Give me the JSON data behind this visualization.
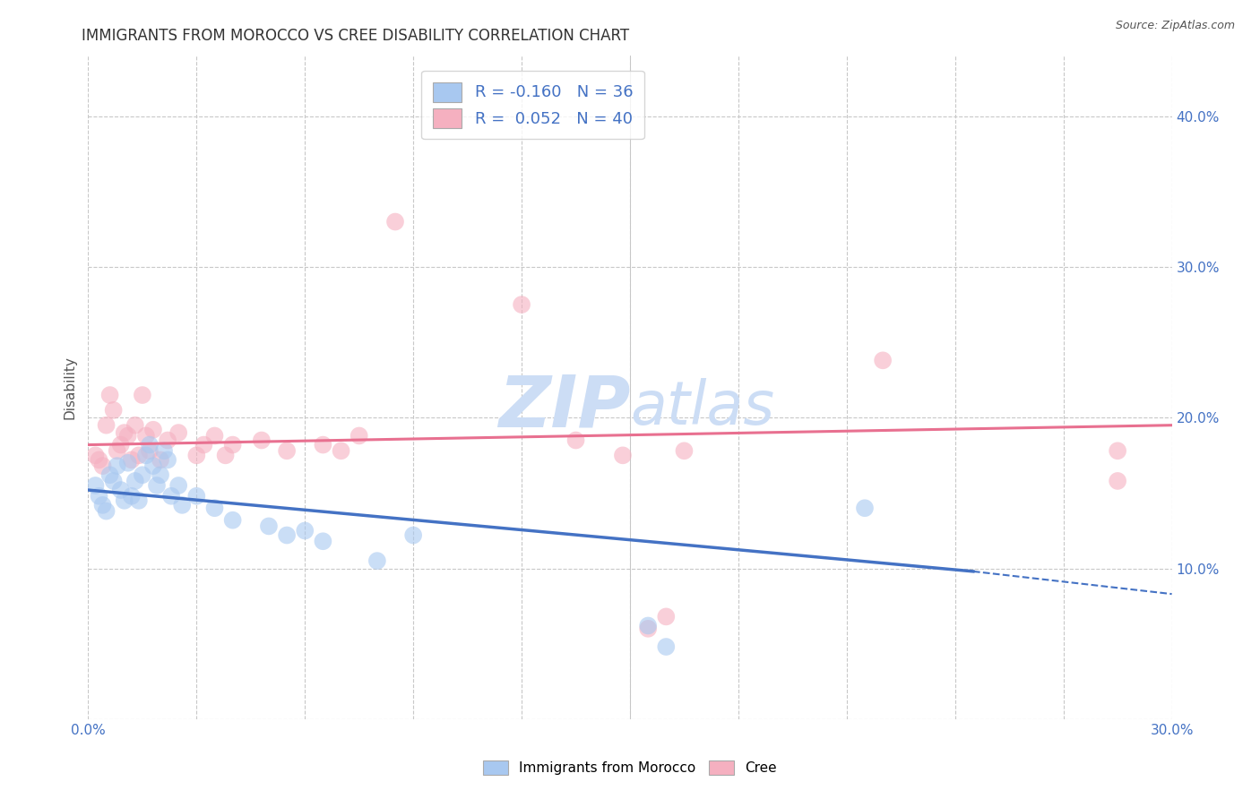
{
  "title": "IMMIGRANTS FROM MOROCCO VS CREE DISABILITY CORRELATION CHART",
  "source": "Source: ZipAtlas.com",
  "ylabel": "Disability",
  "xlim": [
    0.0,
    0.3
  ],
  "ylim": [
    0.0,
    0.44
  ],
  "yticks": [
    0.0,
    0.1,
    0.2,
    0.3,
    0.4
  ],
  "xticks": [
    0.0,
    0.03,
    0.06,
    0.09,
    0.12,
    0.15,
    0.18,
    0.21,
    0.24,
    0.27,
    0.3
  ],
  "legend_blue_label": "R = -0.160   N = 36",
  "legend_pink_label": "R =  0.052   N = 40",
  "blue_color": "#A8C8F0",
  "pink_color": "#F5B0C0",
  "blue_line_color": "#4472C4",
  "pink_line_color": "#E87090",
  "axis_color": "#4472C4",
  "title_color": "#333333",
  "scatter_blue": [
    [
      0.002,
      0.155
    ],
    [
      0.003,
      0.148
    ],
    [
      0.004,
      0.142
    ],
    [
      0.005,
      0.138
    ],
    [
      0.006,
      0.162
    ],
    [
      0.007,
      0.158
    ],
    [
      0.008,
      0.168
    ],
    [
      0.009,
      0.152
    ],
    [
      0.01,
      0.145
    ],
    [
      0.011,
      0.17
    ],
    [
      0.012,
      0.148
    ],
    [
      0.013,
      0.158
    ],
    [
      0.014,
      0.145
    ],
    [
      0.015,
      0.162
    ],
    [
      0.016,
      0.175
    ],
    [
      0.017,
      0.182
    ],
    [
      0.018,
      0.168
    ],
    [
      0.019,
      0.155
    ],
    [
      0.02,
      0.162
    ],
    [
      0.021,
      0.178
    ],
    [
      0.022,
      0.172
    ],
    [
      0.023,
      0.148
    ],
    [
      0.025,
      0.155
    ],
    [
      0.026,
      0.142
    ],
    [
      0.03,
      0.148
    ],
    [
      0.035,
      0.14
    ],
    [
      0.04,
      0.132
    ],
    [
      0.05,
      0.128
    ],
    [
      0.055,
      0.122
    ],
    [
      0.06,
      0.125
    ],
    [
      0.065,
      0.118
    ],
    [
      0.08,
      0.105
    ],
    [
      0.09,
      0.122
    ],
    [
      0.155,
      0.062
    ],
    [
      0.16,
      0.048
    ],
    [
      0.215,
      0.14
    ]
  ],
  "scatter_pink": [
    [
      0.002,
      0.175
    ],
    [
      0.003,
      0.172
    ],
    [
      0.004,
      0.168
    ],
    [
      0.005,
      0.195
    ],
    [
      0.006,
      0.215
    ],
    [
      0.007,
      0.205
    ],
    [
      0.008,
      0.178
    ],
    [
      0.009,
      0.182
    ],
    [
      0.01,
      0.19
    ],
    [
      0.011,
      0.188
    ],
    [
      0.012,
      0.172
    ],
    [
      0.013,
      0.195
    ],
    [
      0.014,
      0.175
    ],
    [
      0.015,
      0.215
    ],
    [
      0.016,
      0.188
    ],
    [
      0.017,
      0.178
    ],
    [
      0.018,
      0.192
    ],
    [
      0.02,
      0.172
    ],
    [
      0.022,
      0.185
    ],
    [
      0.025,
      0.19
    ],
    [
      0.03,
      0.175
    ],
    [
      0.032,
      0.182
    ],
    [
      0.035,
      0.188
    ],
    [
      0.038,
      0.175
    ],
    [
      0.04,
      0.182
    ],
    [
      0.048,
      0.185
    ],
    [
      0.055,
      0.178
    ],
    [
      0.065,
      0.182
    ],
    [
      0.07,
      0.178
    ],
    [
      0.075,
      0.188
    ],
    [
      0.085,
      0.33
    ],
    [
      0.12,
      0.275
    ],
    [
      0.135,
      0.185
    ],
    [
      0.148,
      0.175
    ],
    [
      0.155,
      0.06
    ],
    [
      0.16,
      0.068
    ],
    [
      0.165,
      0.178
    ],
    [
      0.22,
      0.238
    ],
    [
      0.285,
      0.178
    ],
    [
      0.285,
      0.158
    ]
  ],
  "blue_trendline": {
    "x_start": 0.0,
    "y_start": 0.152,
    "x_solid_end": 0.245,
    "y_solid_end": 0.098,
    "x_dash_end": 0.3,
    "y_dash_end": 0.083
  },
  "pink_trendline": {
    "x_start": 0.0,
    "y_start": 0.182,
    "x_end": 0.3,
    "y_end": 0.195
  },
  "background_color": "#ffffff",
  "grid_color": "#c8c8c8",
  "watermark_color": "#ccddf5",
  "bottom_legend": [
    "Immigrants from Morocco",
    "Cree"
  ],
  "marker_size": 200,
  "marker_alpha": 0.6
}
